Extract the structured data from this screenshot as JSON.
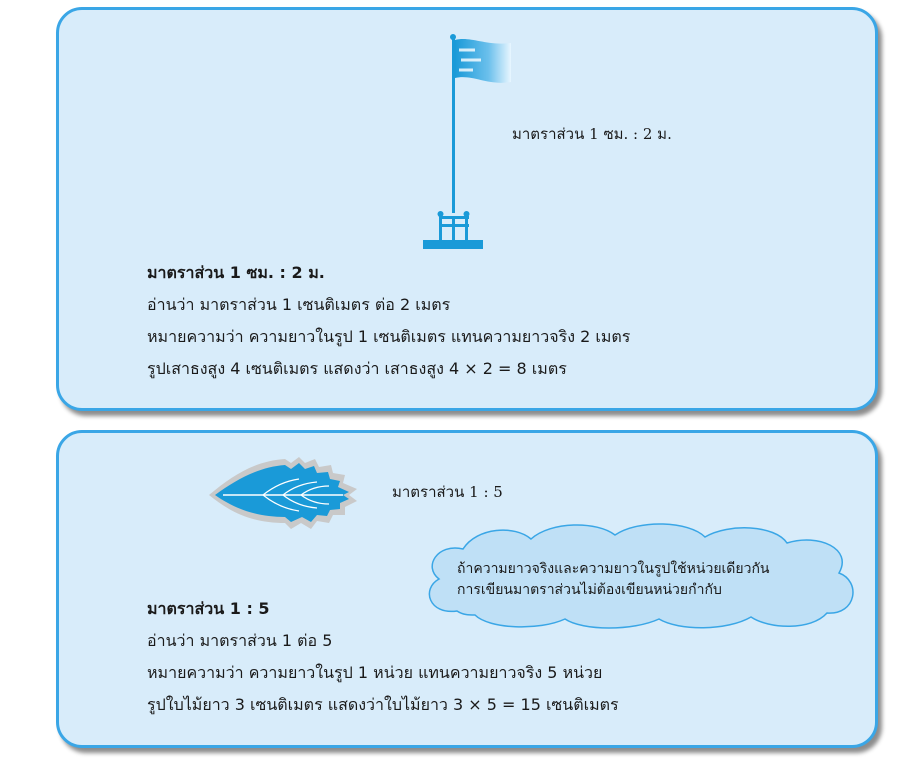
{
  "card1": {
    "caption": "มาตราส่วน  1 ซม.  :  2 ม.",
    "heading": "มาตราส่วน  1 ซม.  :  2 ม.",
    "line1": "อ่านว่า  มาตราส่วน 1 เซนติเมตร ต่อ 2 เมตร",
    "line2": "หมายความว่า   ความยาวในรูป  1  เซนติเมตร  แทนความยาวจริง  2  เมตร",
    "line3": "รูปเสาธงสูง  4  เซนติเมตร  แสดงว่า  เสาธงสูง  4 × 2 = 8  เมตร",
    "image_icon": "flagpole-icon"
  },
  "card2": {
    "caption": "มาตราส่วน  1 : 5",
    "heading": "มาตราส่วน  1 : 5",
    "line1": "อ่านว่า  มาตราส่วน 1 ต่อ 5",
    "line2": "หมายความว่า   ความยาวในรูป  1  หน่วย แทนความยาวจริง  5  หน่วย",
    "line3": "รูปใบไม้ยาว  3  เซนติเมตร  แสดงว่าใบไม้ยาว  3 × 5 = 15  เซนติเมตร",
    "image_icon": "leaf-icon",
    "cloud": {
      "line1": "ถ้าความยาวจริงและความยาวในรูปใช้หน่วยเดียวกัน",
      "line2": "การเขียนมาตราส่วนไม่ต้องเขียนหน่วยกำกับ"
    }
  },
  "colors": {
    "card_fill": "#d8ecfa",
    "card_border": "#3aa6e6",
    "accent_blue": "#1a9ad8",
    "cloud_fill": "#bfe0f6"
  }
}
